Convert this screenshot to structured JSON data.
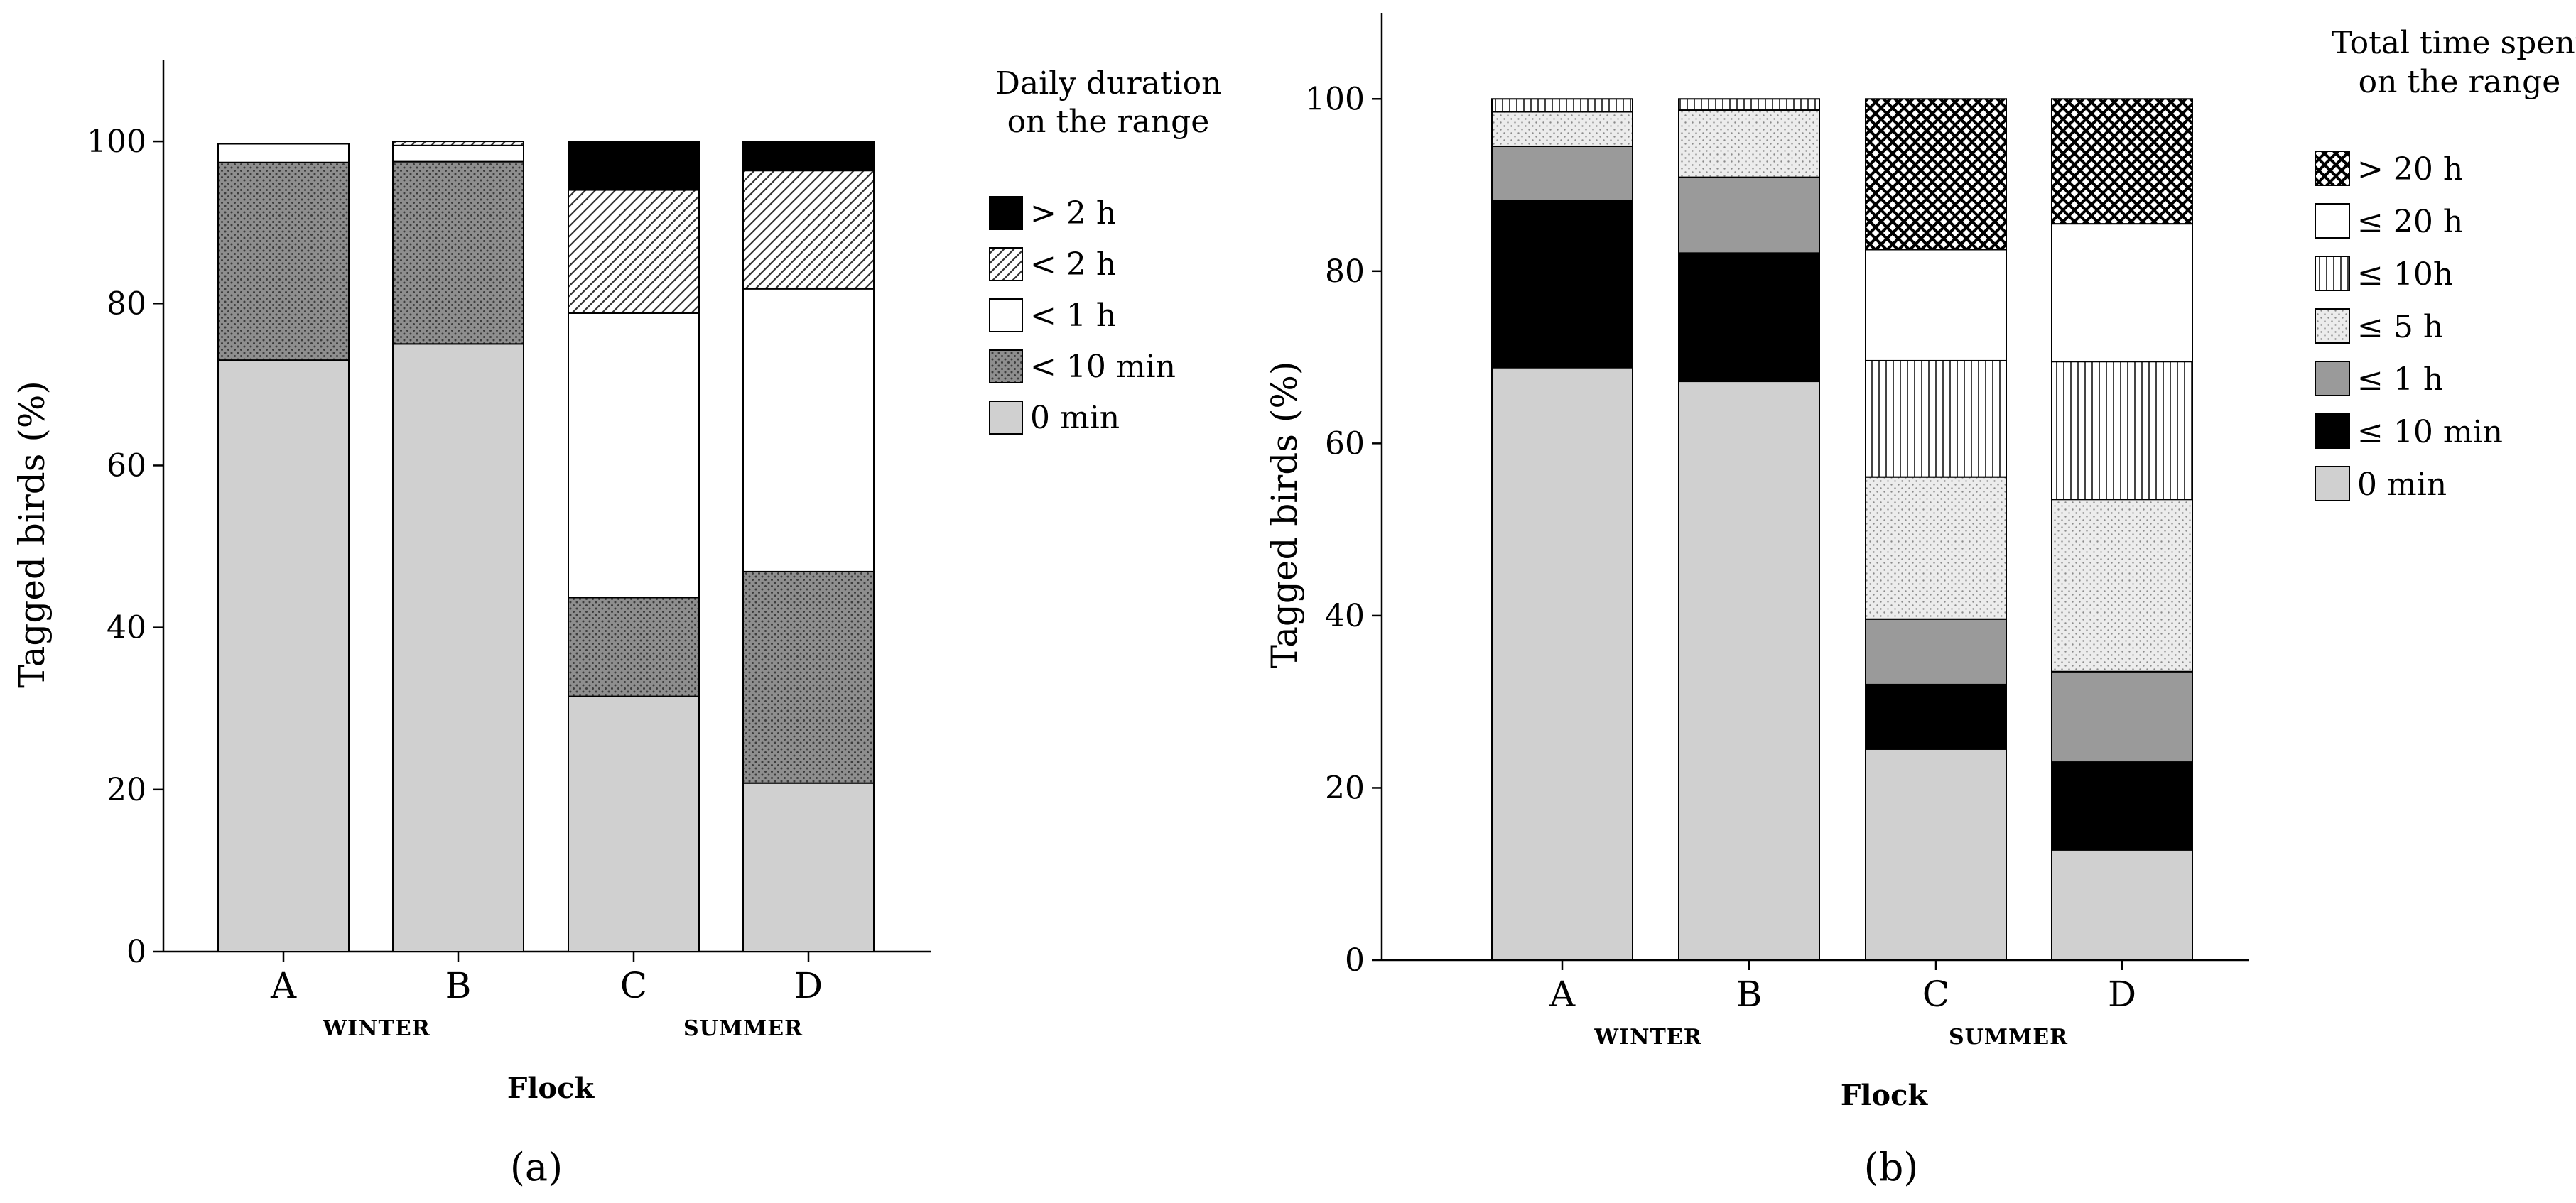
{
  "chart_data": [
    {
      "type": "bar",
      "stacked": true,
      "panel_label": "(a)",
      "ylabel": "Tagged birds (%)",
      "xlabel": "Flock",
      "ylim": [
        0,
        110
      ],
      "yticks": [
        0,
        20,
        40,
        60,
        80,
        100
      ],
      "categories": [
        "A",
        "B",
        "C",
        "D"
      ],
      "season_labels": [
        "WINTER",
        "SUMMER"
      ],
      "legend": {
        "title_lines": [
          "Daily duration",
          "on the range"
        ],
        "placement": "right"
      },
      "series": [
        {
          "name": "0 min",
          "pattern": "solid-lightgray",
          "values": [
            73,
            75,
            31.5,
            20.8
          ]
        },
        {
          "name": "< 10 min",
          "pattern": "dots-darkgray",
          "values": [
            24.4,
            22.5,
            12.2,
            26.1
          ]
        },
        {
          "name": "< 1 h",
          "pattern": "white",
          "values": [
            2.3,
            2.0,
            35.1,
            34.9
          ]
        },
        {
          "name": "< 2 h",
          "pattern": "diagonal-hatch",
          "values": [
            0,
            0.5,
            15.2,
            14.6
          ]
        },
        {
          "name": "> 2 h",
          "pattern": "solid-black",
          "values": [
            0,
            0,
            6.0,
            3.6
          ]
        }
      ]
    },
    {
      "type": "bar",
      "stacked": true,
      "panel_label": "(b)",
      "ylabel": "Tagged birds (%)",
      "xlabel": "Flock",
      "ylim": [
        0,
        110
      ],
      "yticks": [
        0,
        20,
        40,
        60,
        80,
        100
      ],
      "categories": [
        "A",
        "B",
        "C",
        "D"
      ],
      "season_labels": [
        "WINTER",
        "SUMMER"
      ],
      "legend": {
        "title_lines": [
          "Total time spent",
          "on the range"
        ],
        "placement": "right"
      },
      "series": [
        {
          "name": "0 min",
          "pattern": "solid-lightgray",
          "values": [
            68.8,
            67.2,
            24.5,
            12.8
          ]
        },
        {
          "name": "≤ 10 min",
          "pattern": "solid-black",
          "values": [
            19.4,
            14.9,
            7.5,
            10.2
          ]
        },
        {
          "name": "≤ 1 h",
          "pattern": "solid-gray",
          "values": [
            6.3,
            8.8,
            7.6,
            10.5
          ]
        },
        {
          "name": "≤ 5 h",
          "pattern": "light-dots",
          "values": [
            4.0,
            7.8,
            16.5,
            20.0
          ]
        },
        {
          "name": "≤ 10h",
          "pattern": "vertical-lines",
          "values": [
            1.5,
            1.3,
            13.5,
            16.0
          ]
        },
        {
          "name": "≤ 20 h",
          "pattern": "white",
          "values": [
            0,
            0,
            12.9,
            16.0
          ]
        },
        {
          "name": "> 20 h",
          "pattern": "crosshatch",
          "values": [
            0,
            0,
            17.5,
            14.5
          ]
        }
      ]
    }
  ]
}
